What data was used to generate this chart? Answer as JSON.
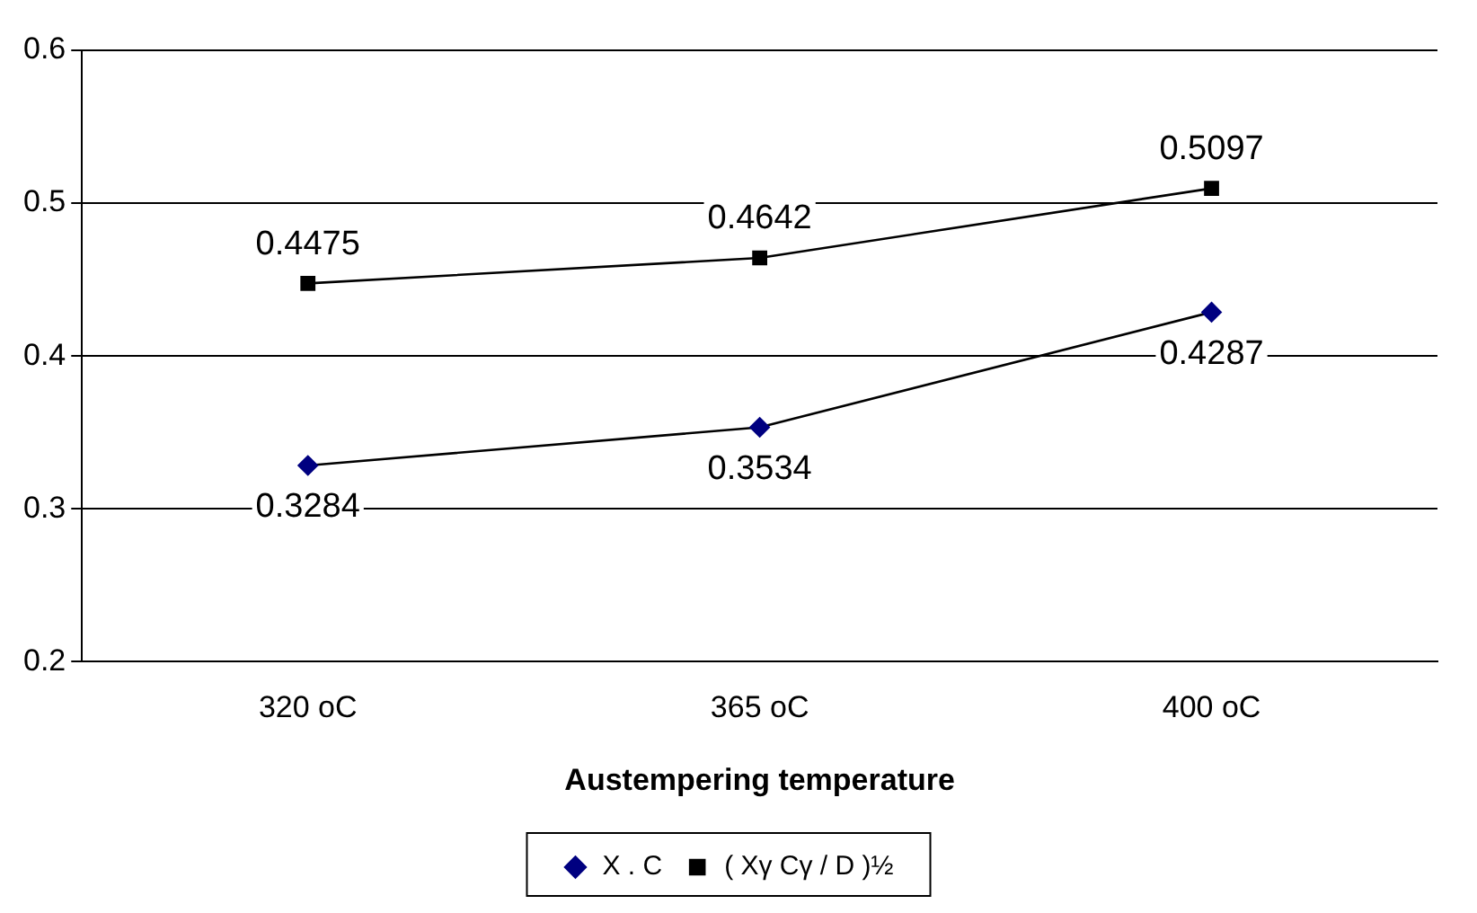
{
  "chart_data": {
    "type": "line",
    "xlabel": "Austempering temperature",
    "categories": [
      "320 oC",
      "365 oC",
      "400 oC"
    ],
    "series": [
      {
        "name": "X . C",
        "color": "#000080",
        "marker": "diamond",
        "values": [
          0.3284,
          0.3534,
          0.4287
        ]
      },
      {
        "name": "( Xγ Cγ / D )½",
        "color": "#000000",
        "marker": "square",
        "values": [
          0.4475,
          0.4642,
          0.5097
        ]
      }
    ],
    "ylim": [
      0.2,
      0.6
    ],
    "yticks": [
      0.2,
      0.3,
      0.4,
      0.5,
      0.6
    ],
    "grid": "y",
    "legend": "bottom",
    "data_labels": true
  }
}
